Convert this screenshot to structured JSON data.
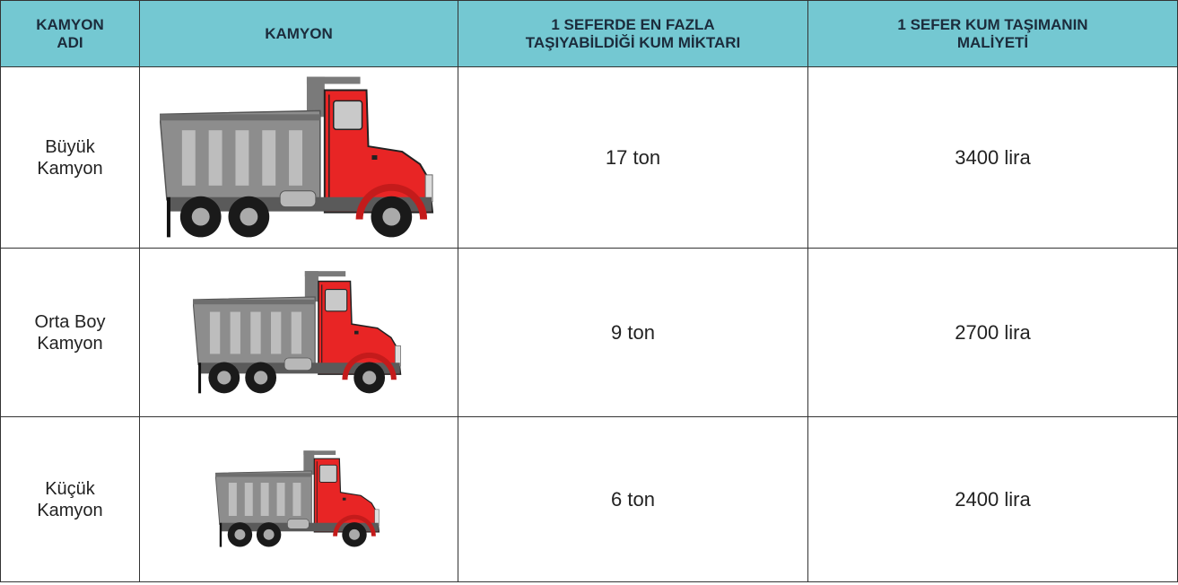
{
  "table": {
    "header": [
      [
        "KAMYON",
        "ADI"
      ],
      [
        "KAMYON"
      ],
      [
        "1 SEFERDE EN FAZLA",
        "TAŞIYABİLDİĞİ KUM MİKTARI"
      ],
      [
        "1 SEFER KUM TAŞIMANIN",
        "MALİYETİ"
      ]
    ],
    "rows": [
      {
        "name": [
          "Büyük",
          "Kamyon"
        ],
        "capacity": "17 ton",
        "cost": "3400 lira"
      },
      {
        "name": [
          "Orta Boy",
          "Kamyon"
        ],
        "capacity": "9 ton",
        "cost": "2700 lira"
      },
      {
        "name": [
          "Küçük",
          "Kamyon"
        ],
        "capacity": "6 ton",
        "cost": "2400 lira"
      }
    ]
  }
}
